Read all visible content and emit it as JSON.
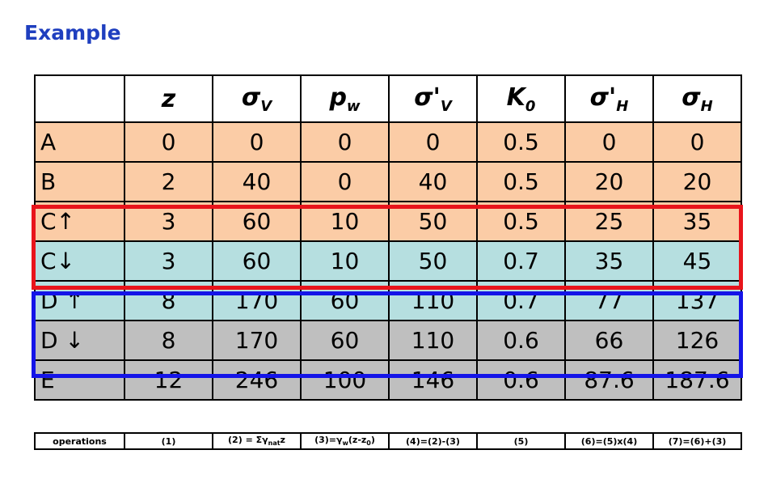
{
  "title": "Example",
  "table": {
    "header": [
      {
        "main": "z"
      },
      {
        "main": "σ",
        "sub": "V"
      },
      {
        "main": "p",
        "sub": "w"
      },
      {
        "main": "σ'",
        "sub": "V"
      },
      {
        "main": "K",
        "sub": "0"
      },
      {
        "main": "σ'",
        "sub": "H"
      },
      {
        "main": "σ",
        "sub": "H"
      }
    ],
    "rows": [
      {
        "label": "A",
        "values": [
          0,
          0,
          0,
          0,
          0.5,
          0,
          0
        ]
      },
      {
        "label": "B",
        "values": [
          2,
          40,
          0,
          40,
          0.5,
          20,
          20
        ]
      },
      {
        "label": "C↑",
        "values": [
          3,
          60,
          10,
          50,
          0.5,
          25,
          35
        ]
      },
      {
        "label": "C↓",
        "values": [
          3,
          60,
          10,
          50,
          0.7,
          35,
          45
        ]
      },
      {
        "label": "D ↑",
        "values": [
          8,
          170,
          60,
          110,
          0.7,
          77,
          137
        ]
      },
      {
        "label": "D ↓",
        "values": [
          8,
          170,
          60,
          110,
          0.6,
          66,
          126
        ]
      },
      {
        "label": "E",
        "values": [
          12,
          246,
          100,
          146,
          0.6,
          87.6,
          187.6
        ]
      }
    ]
  },
  "operations": [
    [
      {
        "text": "operations"
      }
    ],
    [
      {
        "text": "(1)"
      }
    ],
    [
      {
        "text": "(2) = Σγ"
      },
      {
        "text": "nat",
        "sub": true
      },
      {
        "text": "z"
      }
    ],
    [
      {
        "text": "(3)=γ"
      },
      {
        "text": "w",
        "sub": true
      },
      {
        "text": "(z-z"
      },
      {
        "text": "0",
        "sub": true
      },
      {
        "text": ")"
      }
    ],
    [
      {
        "text": "(4)=(2)-(3)"
      }
    ],
    [
      {
        "text": "(5)"
      }
    ],
    [
      {
        "text": "(6)=(5)x(4)"
      }
    ],
    [
      {
        "text": "(7)=(6)+(3)"
      }
    ]
  ]
}
